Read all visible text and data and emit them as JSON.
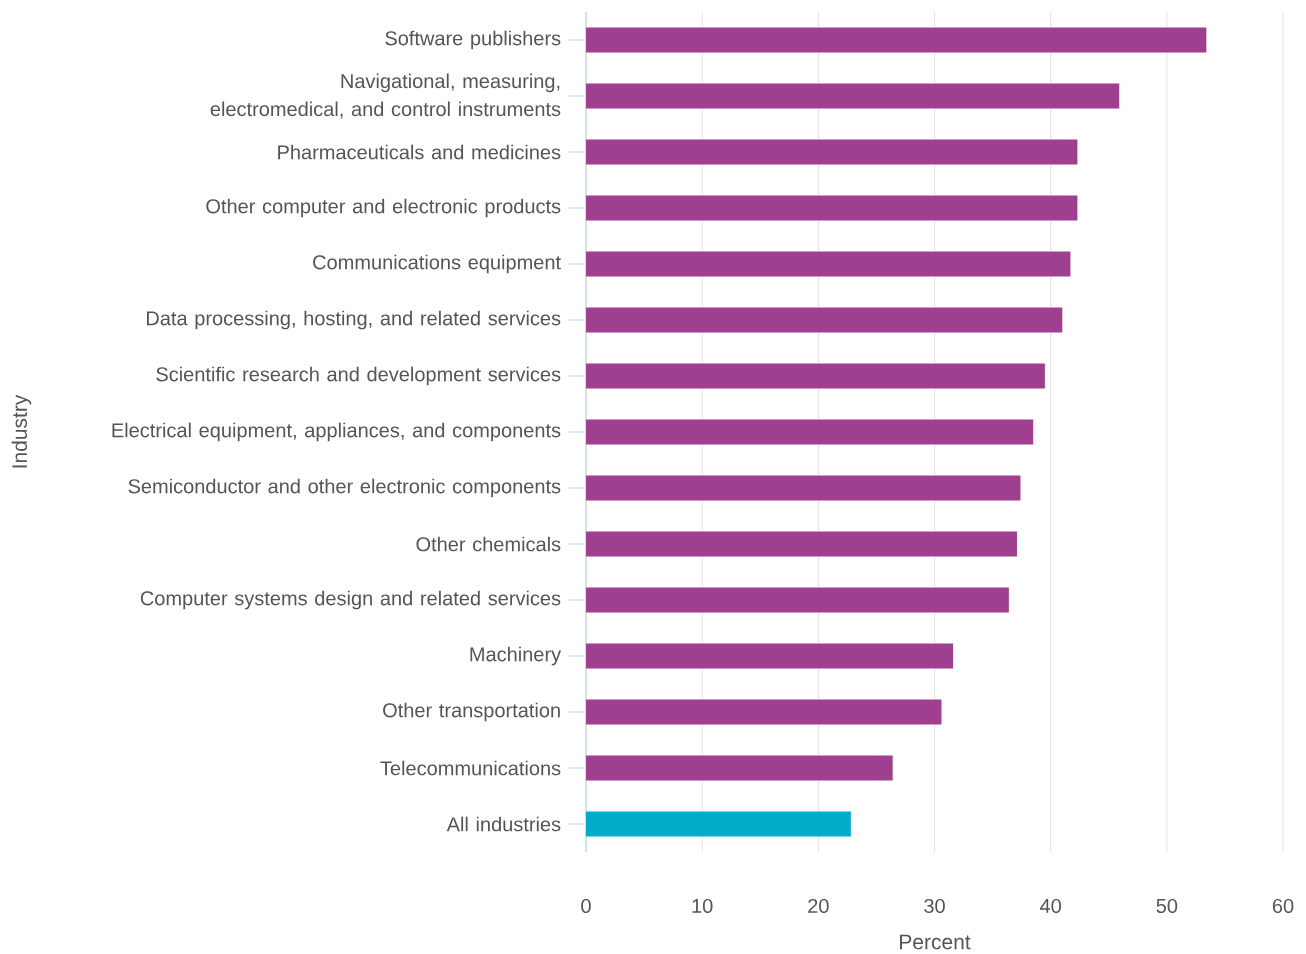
{
  "chart_data": {
    "type": "bar",
    "orientation": "horizontal",
    "xlabel": "Percent",
    "ylabel": "Industry",
    "categories": [
      "Software publishers",
      "Navigational, measuring, electromedical, and control instruments",
      "Pharmaceuticals and medicines",
      "Other computer and electronic products",
      "Communications equipment",
      "Data processing, hosting, and related services",
      "Scientific research and development services",
      "Electrical equipment, appliances, and components",
      "Semiconductor and other electronic components",
      "Other chemicals",
      "Computer systems design and related services",
      "Machinery",
      "Other transportation",
      "Telecommunications",
      "All industries"
    ],
    "values": [
      53.4,
      45.9,
      42.3,
      42.3,
      41.7,
      41.0,
      39.5,
      38.5,
      37.4,
      37.1,
      36.4,
      31.6,
      30.6,
      26.4,
      22.8
    ],
    "colors": [
      "#9e3f8f",
      "#9e3f8f",
      "#9e3f8f",
      "#9e3f8f",
      "#9e3f8f",
      "#9e3f8f",
      "#9e3f8f",
      "#9e3f8f",
      "#9e3f8f",
      "#9e3f8f",
      "#9e3f8f",
      "#9e3f8f",
      "#9e3f8f",
      "#9e3f8f",
      "#00acc8"
    ],
    "xlim": [
      0,
      60
    ],
    "xticks": [
      0,
      10,
      20,
      30,
      40,
      50,
      60
    ],
    "grid": "x"
  }
}
